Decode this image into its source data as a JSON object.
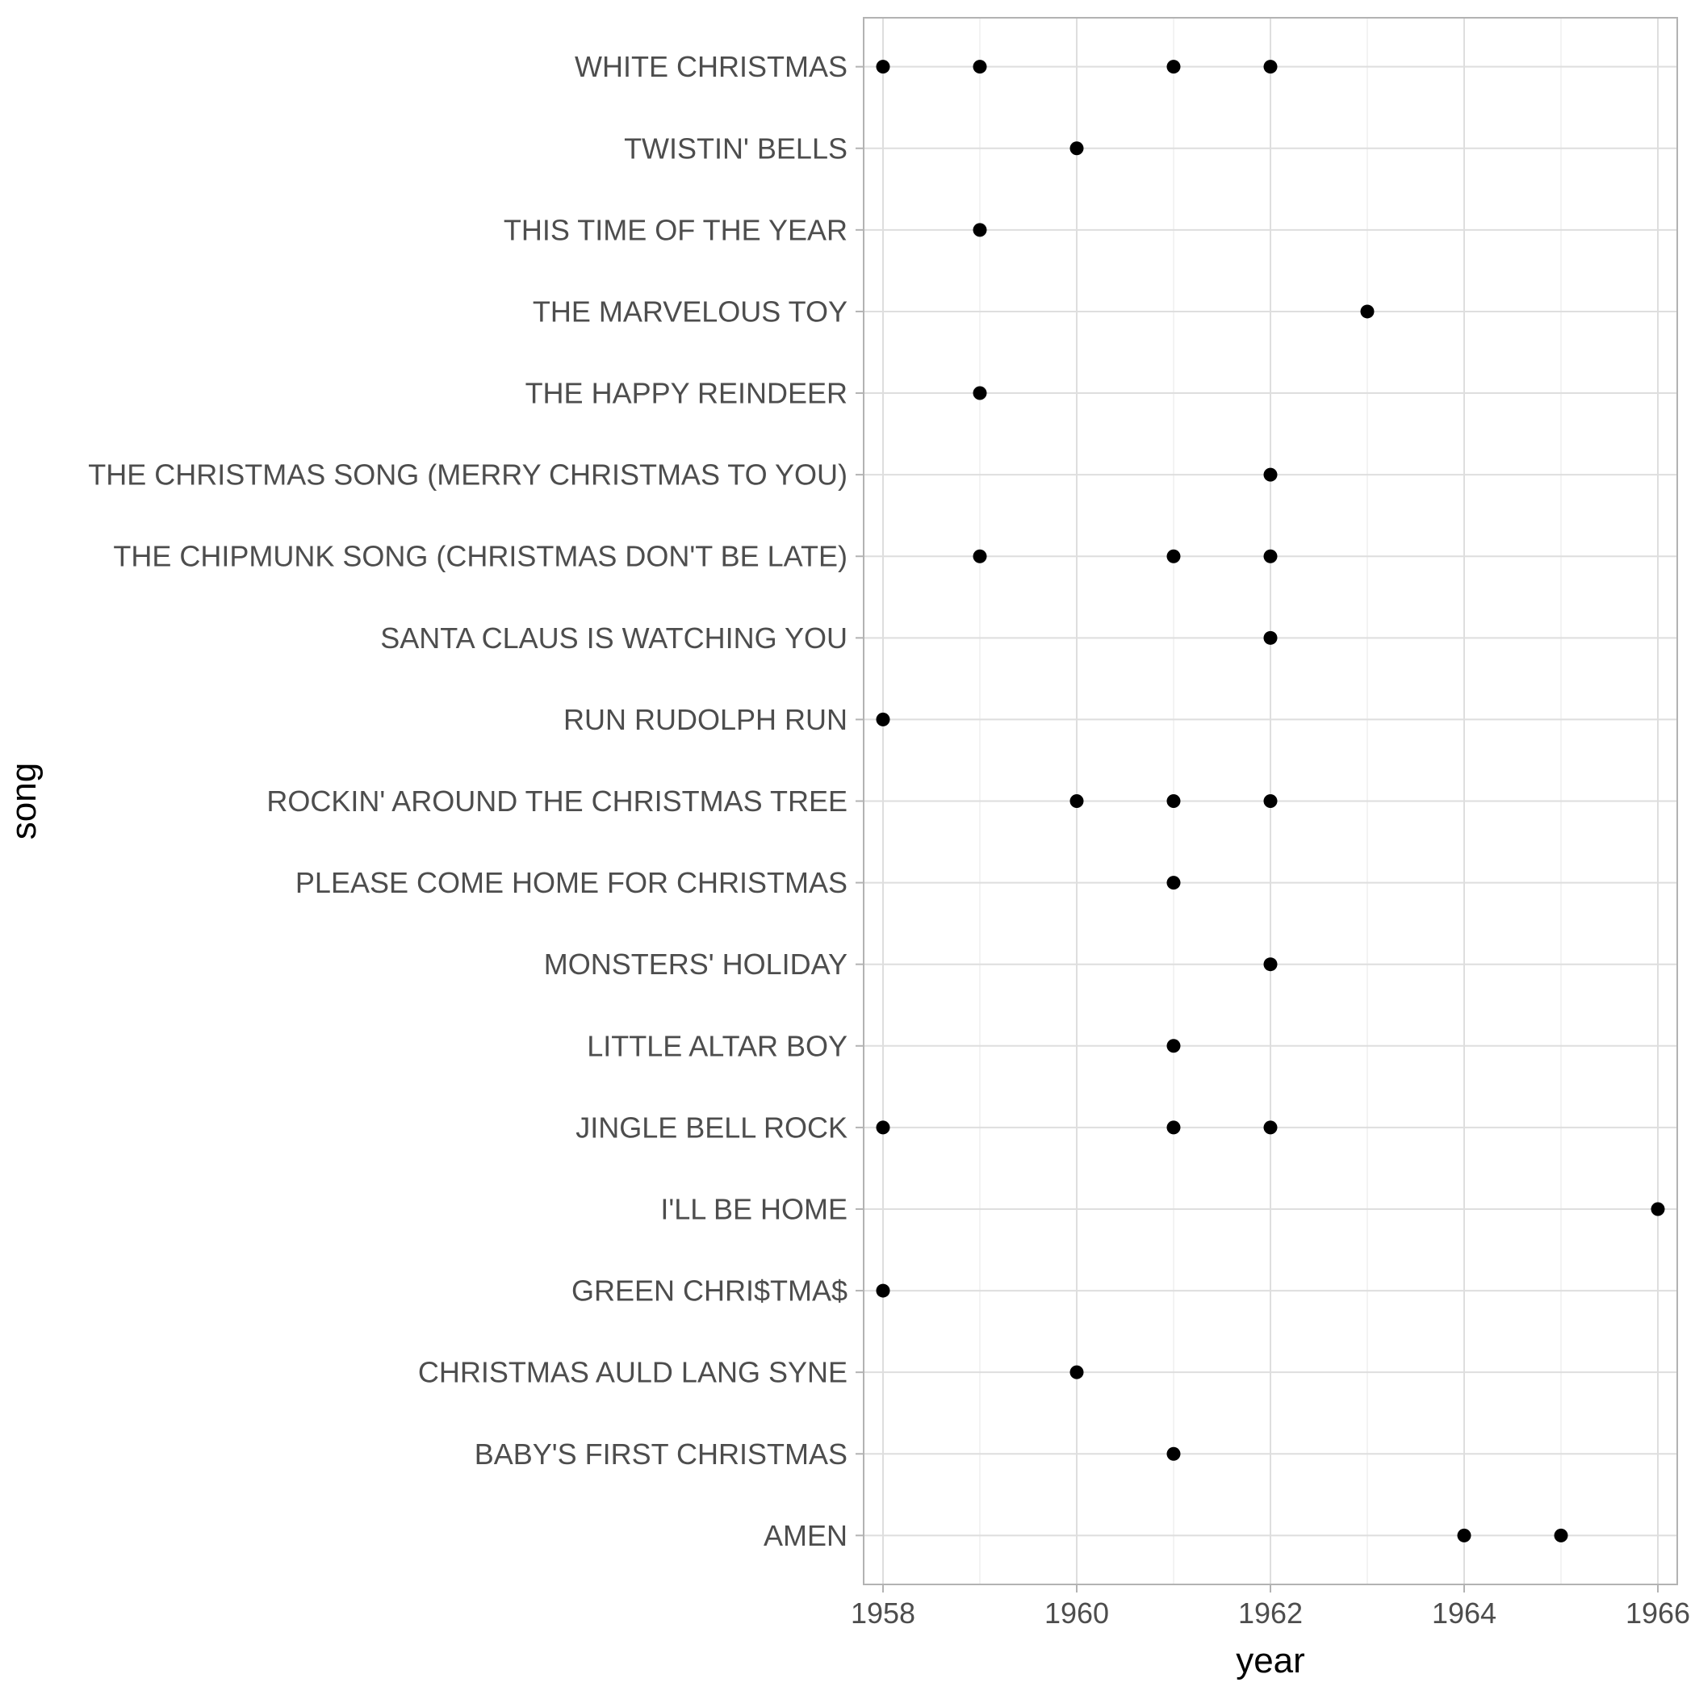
{
  "chart_data": {
    "type": "scatter",
    "xlabel": "year",
    "ylabel": "song",
    "xlim": [
      1957.8,
      1966.2
    ],
    "x_ticks": [
      1958,
      1960,
      1962,
      1964,
      1966
    ],
    "grid": true,
    "point_color": "#000000",
    "categories": [
      "AMEN",
      "BABY'S FIRST CHRISTMAS",
      "CHRISTMAS AULD LANG SYNE",
      "GREEN CHRI$TMA$",
      "I'LL BE HOME",
      "JINGLE BELL ROCK",
      "LITTLE ALTAR BOY",
      "MONSTERS' HOLIDAY",
      "PLEASE COME HOME FOR CHRISTMAS",
      "ROCKIN' AROUND THE CHRISTMAS TREE",
      "RUN RUDOLPH RUN",
      "SANTA CLAUS IS WATCHING YOU",
      "THE CHIPMUNK SONG (CHRISTMAS DON'T BE LATE)",
      "THE CHRISTMAS SONG (MERRY CHRISTMAS TO YOU)",
      "THE HAPPY REINDEER",
      "THE MARVELOUS TOY",
      "THIS TIME OF THE YEAR",
      "TWISTIN' BELLS",
      "WHITE CHRISTMAS"
    ],
    "points": [
      {
        "song": "WHITE CHRISTMAS",
        "year": 1958
      },
      {
        "song": "WHITE CHRISTMAS",
        "year": 1959
      },
      {
        "song": "WHITE CHRISTMAS",
        "year": 1961
      },
      {
        "song": "WHITE CHRISTMAS",
        "year": 1962
      },
      {
        "song": "TWISTIN' BELLS",
        "year": 1960
      },
      {
        "song": "THIS TIME OF THE YEAR",
        "year": 1959
      },
      {
        "song": "THE MARVELOUS TOY",
        "year": 1963
      },
      {
        "song": "THE HAPPY REINDEER",
        "year": 1959
      },
      {
        "song": "THE CHRISTMAS SONG (MERRY CHRISTMAS TO YOU)",
        "year": 1962
      },
      {
        "song": "THE CHIPMUNK SONG (CHRISTMAS DON'T BE LATE)",
        "year": 1959
      },
      {
        "song": "THE CHIPMUNK SONG (CHRISTMAS DON'T BE LATE)",
        "year": 1961
      },
      {
        "song": "THE CHIPMUNK SONG (CHRISTMAS DON'T BE LATE)",
        "year": 1962
      },
      {
        "song": "SANTA CLAUS IS WATCHING YOU",
        "year": 1962
      },
      {
        "song": "RUN RUDOLPH RUN",
        "year": 1958
      },
      {
        "song": "ROCKIN' AROUND THE CHRISTMAS TREE",
        "year": 1960
      },
      {
        "song": "ROCKIN' AROUND THE CHRISTMAS TREE",
        "year": 1961
      },
      {
        "song": "ROCKIN' AROUND THE CHRISTMAS TREE",
        "year": 1962
      },
      {
        "song": "PLEASE COME HOME FOR CHRISTMAS",
        "year": 1961
      },
      {
        "song": "MONSTERS' HOLIDAY",
        "year": 1962
      },
      {
        "song": "LITTLE ALTAR BOY",
        "year": 1961
      },
      {
        "song": "JINGLE BELL ROCK",
        "year": 1958
      },
      {
        "song": "JINGLE BELL ROCK",
        "year": 1961
      },
      {
        "song": "JINGLE BELL ROCK",
        "year": 1962
      },
      {
        "song": "I'LL BE HOME",
        "year": 1966
      },
      {
        "song": "GREEN CHRI$TMA$",
        "year": 1958
      },
      {
        "song": "CHRISTMAS AULD LANG SYNE",
        "year": 1960
      },
      {
        "song": "BABY'S FIRST CHRISTMAS",
        "year": 1961
      },
      {
        "song": "AMEN",
        "year": 1964
      },
      {
        "song": "AMEN",
        "year": 1965
      }
    ]
  }
}
